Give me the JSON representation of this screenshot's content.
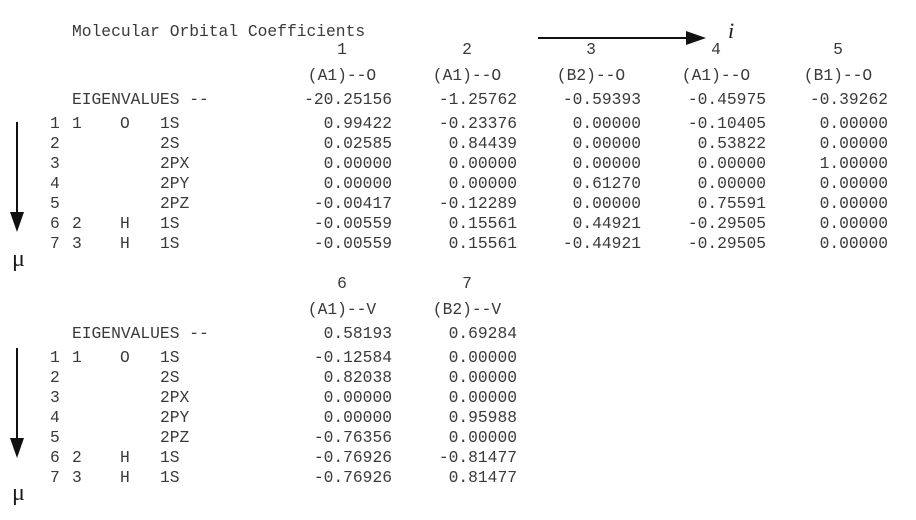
{
  "title": "Molecular Orbital Coefficients",
  "orbital_index_symbol": "i",
  "basis_index_symbol": "μ",
  "eigen_label": "EIGENVALUES --",
  "blocks": [
    {
      "orbitals": [
        {
          "num": "1",
          "sym": "(A1)--O",
          "eig": "-20.25156"
        },
        {
          "num": "2",
          "sym": "(A1)--O",
          "eig": "-1.25762"
        },
        {
          "num": "3",
          "sym": "(B2)--O",
          "eig": "-0.59393"
        },
        {
          "num": "4",
          "sym": "(A1)--O",
          "eig": "-0.45975"
        },
        {
          "num": "5",
          "sym": "(B1)--O",
          "eig": "-0.39262"
        }
      ],
      "rows": [
        {
          "idx": "1",
          "atom_idx": "1",
          "atom": "O",
          "ao": "1S",
          "vals": [
            "0.99422",
            "-0.23376",
            "0.00000",
            "-0.10405",
            "0.00000"
          ]
        },
        {
          "idx": "2",
          "atom_idx": "",
          "atom": "",
          "ao": "2S",
          "vals": [
            "0.02585",
            "0.84439",
            "0.00000",
            "0.53822",
            "0.00000"
          ]
        },
        {
          "idx": "3",
          "atom_idx": "",
          "atom": "",
          "ao": "2PX",
          "vals": [
            "0.00000",
            "0.00000",
            "0.00000",
            "0.00000",
            "1.00000"
          ]
        },
        {
          "idx": "4",
          "atom_idx": "",
          "atom": "",
          "ao": "2PY",
          "vals": [
            "0.00000",
            "0.00000",
            "0.61270",
            "0.00000",
            "0.00000"
          ]
        },
        {
          "idx": "5",
          "atom_idx": "",
          "atom": "",
          "ao": "2PZ",
          "vals": [
            "-0.00417",
            "-0.12289",
            "0.00000",
            "0.75591",
            "0.00000"
          ]
        },
        {
          "idx": "6",
          "atom_idx": "2",
          "atom": "H",
          "ao": "1S",
          "vals": [
            "-0.00559",
            "0.15561",
            "0.44921",
            "-0.29505",
            "0.00000"
          ]
        },
        {
          "idx": "7",
          "atom_idx": "3",
          "atom": "H",
          "ao": "1S",
          "vals": [
            "-0.00559",
            "0.15561",
            "-0.44921",
            "-0.29505",
            "0.00000"
          ]
        }
      ]
    },
    {
      "orbitals": [
        {
          "num": "6",
          "sym": "(A1)--V",
          "eig": "0.58193"
        },
        {
          "num": "7",
          "sym": "(B2)--V",
          "eig": "0.69284"
        }
      ],
      "rows": [
        {
          "idx": "1",
          "atom_idx": "1",
          "atom": "O",
          "ao": "1S",
          "vals": [
            "-0.12584",
            "0.00000"
          ]
        },
        {
          "idx": "2",
          "atom_idx": "",
          "atom": "",
          "ao": "2S",
          "vals": [
            "0.82038",
            "0.00000"
          ]
        },
        {
          "idx": "3",
          "atom_idx": "",
          "atom": "",
          "ao": "2PX",
          "vals": [
            "0.00000",
            "0.00000"
          ]
        },
        {
          "idx": "4",
          "atom_idx": "",
          "atom": "",
          "ao": "2PY",
          "vals": [
            "0.00000",
            "0.95988"
          ]
        },
        {
          "idx": "5",
          "atom_idx": "",
          "atom": "",
          "ao": "2PZ",
          "vals": [
            "-0.76356",
            "0.00000"
          ]
        },
        {
          "idx": "6",
          "atom_idx": "2",
          "atom": "H",
          "ao": "1S",
          "vals": [
            "-0.76926",
            "-0.81477"
          ]
        },
        {
          "idx": "7",
          "atom_idx": "3",
          "atom": "H",
          "ao": "1S",
          "vals": [
            "-0.76926",
            "0.81477"
          ]
        }
      ]
    }
  ]
}
